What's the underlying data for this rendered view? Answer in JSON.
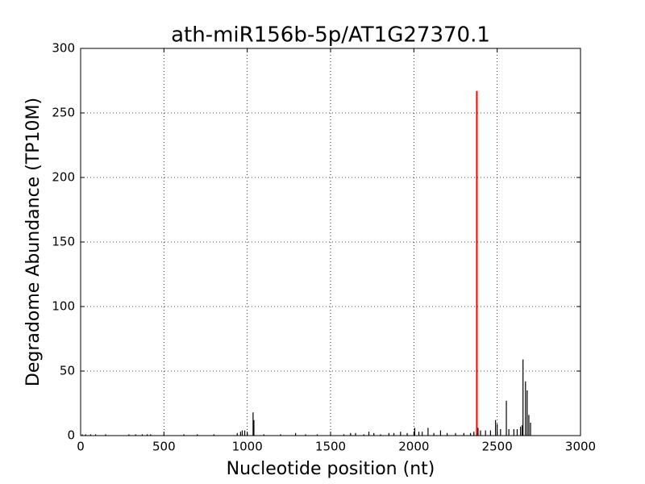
{
  "chart_data": {
    "type": "stem",
    "title": "ath-miR156b-5p/AT1G27370.1",
    "xlabel": "Nucleotide position (nt)",
    "ylabel": "Degradome Abundance (TP10M)",
    "xlim": [
      0,
      3000
    ],
    "ylim": [
      0,
      300
    ],
    "xticks": [
      0,
      500,
      1000,
      1500,
      2000,
      2500,
      3000
    ],
    "yticks": [
      0,
      50,
      100,
      150,
      200,
      250,
      300
    ],
    "grid": true,
    "series": [
      {
        "color": "#000000",
        "x": [
          10,
          30,
          60,
          90,
          150,
          290,
          330,
          370,
          400,
          420,
          500,
          620,
          700,
          800,
          940,
          960,
          970,
          985,
          1000,
          1035,
          1040,
          1100,
          1200,
          1290,
          1350,
          1420,
          1500,
          1580,
          1620,
          1650,
          1700,
          1730,
          1760,
          1800,
          1850,
          1880,
          1920,
          1960,
          2005,
          2030,
          2050,
          2085,
          2120,
          2160,
          2200,
          2250,
          2300,
          2340,
          2360,
          2385,
          2400,
          2430,
          2460,
          2490,
          2500,
          2520,
          2555,
          2570,
          2600,
          2620,
          2640,
          2650,
          2655,
          2670,
          2680,
          2690,
          2700
        ],
        "values": [
          1,
          1,
          1,
          1,
          1,
          1,
          1,
          1,
          1,
          1,
          1,
          1,
          1,
          1,
          2,
          3,
          4,
          4,
          2,
          18,
          12,
          1,
          1,
          2,
          1,
          1,
          1,
          1,
          2,
          2,
          1,
          3,
          2,
          1,
          2,
          2,
          3,
          2,
          6,
          3,
          3,
          6,
          2,
          4,
          2,
          2,
          2,
          2,
          3,
          6,
          4,
          4,
          4,
          12,
          9,
          5,
          27,
          5,
          5,
          5,
          7,
          8,
          59,
          42,
          35,
          16,
          10
        ]
      },
      {
        "color": "#ff0000",
        "x": [
          2378
        ],
        "values": [
          267
        ]
      }
    ]
  }
}
